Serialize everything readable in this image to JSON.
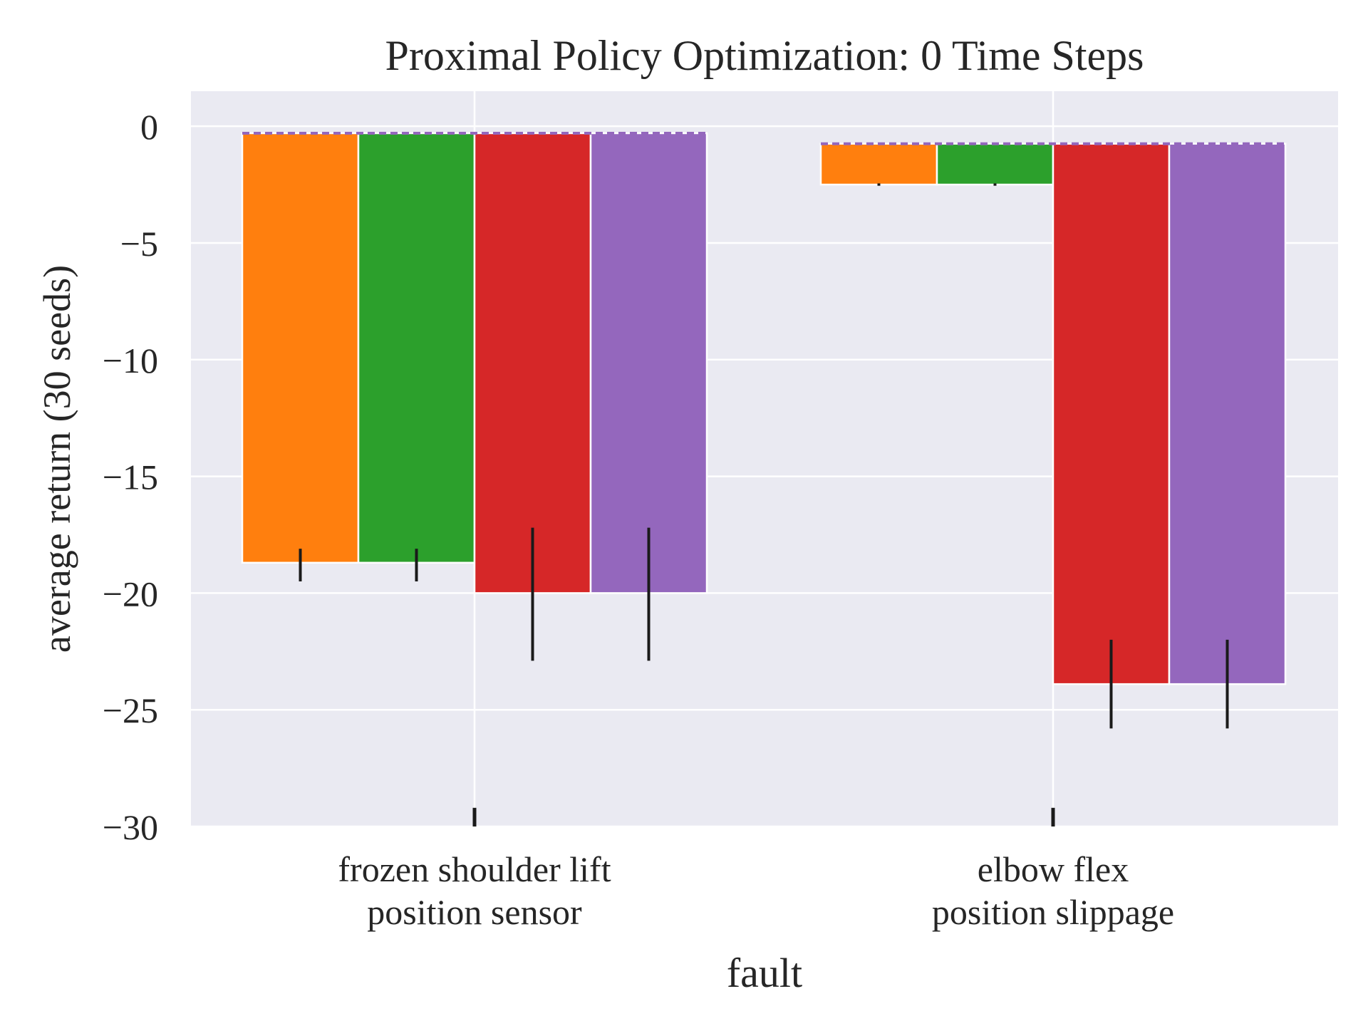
{
  "chart_data": {
    "type": "bar",
    "title": "Proximal Policy Optimization: 0 Time Steps",
    "xlabel": "fault",
    "ylabel": "average return (30 seeds)",
    "ylim": [
      -30,
      1.5
    ],
    "yticks": [
      0,
      -5,
      -10,
      -15,
      -20,
      -25,
      -30
    ],
    "ytick_labels": [
      "0",
      "−5",
      "−10",
      "−15",
      "−20",
      "−25",
      "−30"
    ],
    "grid": true,
    "categories": [
      [
        "frozen shoulder lift",
        "position sensor"
      ],
      [
        "elbow flex",
        "position slippage"
      ]
    ],
    "baseline_values": [
      -0.3,
      -0.75
    ],
    "series": [
      {
        "color": "#ff7f0e",
        "values": [
          -18.7,
          -2.5
        ],
        "error_low": [
          -19.5,
          -2.55
        ],
        "error_high": [
          -18.1,
          -2.45
        ]
      },
      {
        "color": "#2ca02c",
        "values": [
          -18.7,
          -2.5
        ],
        "error_low": [
          -19.5,
          -2.55
        ],
        "error_high": [
          -18.1,
          -2.45
        ]
      },
      {
        "color": "#d62728",
        "values": [
          -20.0,
          -23.9
        ],
        "error_low": [
          -22.9,
          -25.8
        ],
        "error_high": [
          -17.2,
          -22.0
        ]
      },
      {
        "color": "#9467bd",
        "values": [
          -20.0,
          -23.9
        ],
        "error_low": [
          -22.9,
          -25.8
        ],
        "error_high": [
          -17.2,
          -22.0
        ]
      }
    ],
    "category_center_errors": [
      {
        "low": -30,
        "high": -29.2
      },
      {
        "low": -30,
        "high": -29.2
      }
    ],
    "colors": {
      "plot_background": "#eaeaf2",
      "grid": "#ffffff",
      "error_bar": "#1a1a1a",
      "baseline": "#9467bd"
    }
  }
}
